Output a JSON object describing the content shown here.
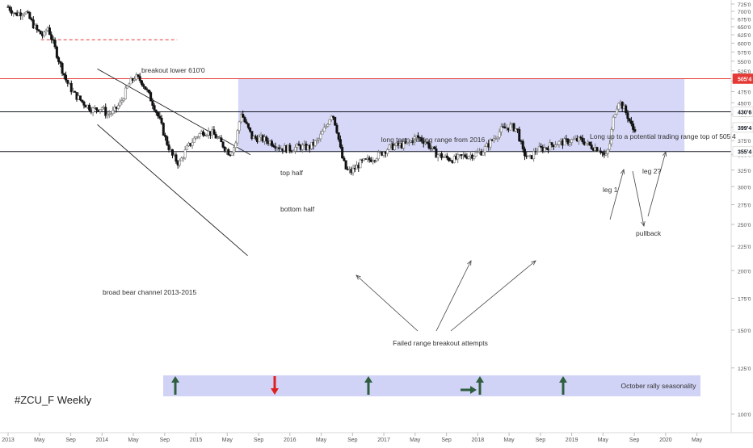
{
  "chart_data": {
    "type": "candlestick",
    "title": "#ZCU_F Weekly",
    "x_tick_labels": [
      "2013",
      "May",
      "Sep",
      "2014",
      "May",
      "Sep",
      "2015",
      "May",
      "Sep",
      "2016",
      "May",
      "Sep",
      "2017",
      "May",
      "Sep",
      "2018",
      "May",
      "Sep",
      "2019",
      "May",
      "Sep",
      "2020",
      "May"
    ],
    "y_tick_labels": [
      "725'0",
      "700'0",
      "675'0",
      "650'0",
      "625'0",
      "600'0",
      "575'0",
      "550'0",
      "525'0",
      "500'0",
      "475'0",
      "450'0",
      "425'0",
      "400'0",
      "375'0",
      "350'0",
      "325'0",
      "300'0",
      "275'0",
      "250'0",
      "225'0",
      "200'0",
      "175'0",
      "150'0",
      "125'0",
      "100'0"
    ],
    "ylim": [
      88,
      737
    ],
    "y_scale": "log",
    "price_markers": [
      {
        "label": "505'4",
        "value": 505.5,
        "color": "#e53935"
      },
      {
        "label": "430'6",
        "value": 430.75,
        "color": "#131722"
      },
      {
        "label": "399'4",
        "value": 399.5,
        "color": "#131722"
      },
      {
        "label": "355'4",
        "value": 355.5,
        "color": "#131722"
      }
    ],
    "horizontal_lines": [
      {
        "value": 505.5,
        "color": "#e53935"
      },
      {
        "value": 430.75,
        "color": "#131722"
      },
      {
        "value": 355.5,
        "color": "#131722"
      }
    ],
    "breakout_level": 610.0,
    "range": {
      "low": 355.5,
      "high": 505.5,
      "from": "2016"
    },
    "price_path": [
      [
        2013.0,
        715
      ],
      [
        2013.08,
        690
      ],
      [
        2013.18,
        700
      ],
      [
        2013.25,
        665
      ],
      [
        2013.3,
        640
      ],
      [
        2013.38,
        620
      ],
      [
        2013.42,
        650
      ],
      [
        2013.48,
        600
      ],
      [
        2013.55,
        545
      ],
      [
        2013.62,
        500
      ],
      [
        2013.7,
        470
      ],
      [
        2013.8,
        450
      ],
      [
        2013.9,
        435
      ],
      [
        2014.0,
        440
      ],
      [
        2014.05,
        425
      ],
      [
        2014.12,
        430
      ],
      [
        2014.2,
        450
      ],
      [
        2014.28,
        490
      ],
      [
        2014.35,
        510
      ],
      [
        2014.42,
        500
      ],
      [
        2014.48,
        475
      ],
      [
        2014.55,
        445
      ],
      [
        2014.62,
        410
      ],
      [
        2014.68,
        375
      ],
      [
        2014.75,
        348
      ],
      [
        2014.82,
        335
      ],
      [
        2014.9,
        360
      ],
      [
        2015.0,
        382
      ],
      [
        2015.08,
        392
      ],
      [
        2015.18,
        388
      ],
      [
        2015.28,
        368
      ],
      [
        2015.36,
        352
      ],
      [
        2015.42,
        368
      ],
      [
        2015.48,
        430
      ],
      [
        2015.52,
        410
      ],
      [
        2015.6,
        380
      ],
      [
        2015.7,
        378
      ],
      [
        2015.8,
        372
      ],
      [
        2015.9,
        362
      ],
      [
        2016.0,
        360
      ],
      [
        2016.1,
        364
      ],
      [
        2016.2,
        362
      ],
      [
        2016.3,
        375
      ],
      [
        2016.38,
        400
      ],
      [
        2016.45,
        430
      ],
      [
        2016.5,
        395
      ],
      [
        2016.55,
        348
      ],
      [
        2016.6,
        325
      ],
      [
        2016.65,
        322
      ],
      [
        2016.75,
        336
      ],
      [
        2016.85,
        342
      ],
      [
        2016.95,
        350
      ],
      [
        2017.05,
        362
      ],
      [
        2017.15,
        366
      ],
      [
        2017.25,
        368
      ],
      [
        2017.35,
        382
      ],
      [
        2017.45,
        372
      ],
      [
        2017.55,
        352
      ],
      [
        2017.65,
        345
      ],
      [
        2017.75,
        342
      ],
      [
        2017.85,
        348
      ],
      [
        2017.95,
        350
      ],
      [
        2018.05,
        356
      ],
      [
        2018.15,
        375
      ],
      [
        2018.25,
        395
      ],
      [
        2018.35,
        402
      ],
      [
        2018.42,
        395
      ],
      [
        2018.48,
        355
      ],
      [
        2018.55,
        342
      ],
      [
        2018.62,
        358
      ],
      [
        2018.72,
        362
      ],
      [
        2018.82,
        370
      ],
      [
        2018.92,
        372
      ],
      [
        2019.0,
        375
      ],
      [
        2019.1,
        376
      ],
      [
        2019.2,
        365
      ],
      [
        2019.3,
        360
      ],
      [
        2019.36,
        345
      ],
      [
        2019.4,
        365
      ],
      [
        2019.45,
        425
      ],
      [
        2019.5,
        455
      ],
      [
        2019.55,
        440
      ],
      [
        2019.6,
        420
      ],
      [
        2019.65,
        395
      ],
      [
        2019.68,
        400
      ]
    ],
    "annotations": [
      {
        "id": "breakout_lower",
        "text": "breakout lower 610'0"
      },
      {
        "id": "range_label",
        "text": "long term trading range from 2016"
      },
      {
        "id": "long_up",
        "text": "Long up to a potential trading range top of 505'4"
      },
      {
        "id": "top_half",
        "text": "top half"
      },
      {
        "id": "bottom_half",
        "text": "bottom half"
      },
      {
        "id": "leg1",
        "text": "leg 1"
      },
      {
        "id": "leg2",
        "text": "leg 2?"
      },
      {
        "id": "pullback",
        "text": "pullback"
      },
      {
        "id": "channel",
        "text": "broad bear channel 2013-2015"
      },
      {
        "id": "failed",
        "text": "Failed range breakout attempts"
      },
      {
        "id": "seasonality",
        "text": "October rally seasonality"
      }
    ],
    "seasonality_arrows": [
      {
        "date": 2014.75,
        "direction": "up",
        "color": "#2e5e3e"
      },
      {
        "date": 2015.75,
        "direction": "down",
        "color": "#e02020"
      },
      {
        "date": 2016.75,
        "direction": "up",
        "color": "#2e5e3e"
      },
      {
        "date": 2017.75,
        "direction": "up",
        "color": "#2e5e3e"
      },
      {
        "date": 2017.67,
        "direction": "right",
        "color": "#2e5e3e"
      },
      {
        "date": 2018.75,
        "direction": "up",
        "color": "#2e5e3e"
      }
    ],
    "colors": {
      "range_box": "#c9cbf4",
      "candle_up": "#7a7a7a",
      "candle_down": "#111111",
      "annotation": "#333333",
      "axis_text": "#555555"
    }
  }
}
